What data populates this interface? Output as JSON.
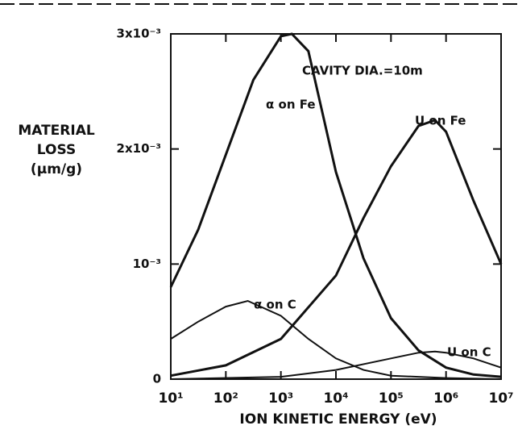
{
  "chart_data": {
    "type": "line",
    "x_label": "ION  KINETIC ENERGY (eV)",
    "y_label": [
      "MATERIAL",
      "LOSS",
      "(μm/g)"
    ],
    "annotation": "CAVITY DIA.=10m",
    "xscale": "log",
    "xlim": [
      10,
      10000000
    ],
    "xticks": [
      {
        "value": 10,
        "label": "10¹"
      },
      {
        "value": 100,
        "label": "10²"
      },
      {
        "value": 1000,
        "label": "10³"
      },
      {
        "value": 10000,
        "label": "10⁴"
      },
      {
        "value": 100000,
        "label": "10⁵"
      },
      {
        "value": 1000000,
        "label": "10⁶"
      },
      {
        "value": 10000000,
        "label": "10⁷"
      }
    ],
    "ylim": [
      0,
      0.003
    ],
    "yticks": [
      0,
      {
        "value": 0.001,
        "label": "10⁻³"
      },
      {
        "value": 0.002,
        "label": "2x10⁻³"
      },
      {
        "value": 0.003,
        "label": "3x10⁻³"
      }
    ],
    "series": [
      {
        "name": "α on Fe",
        "color": "#111111",
        "x": [
          10,
          31.6,
          100,
          316,
          1000,
          1585,
          3162,
          10000,
          31623,
          100000,
          316228,
          1000000,
          3162278,
          10000000
        ],
        "values": [
          0.0008,
          0.0013,
          0.00195,
          0.0026,
          0.00298,
          0.003,
          0.00285,
          0.0018,
          0.00105,
          0.00053,
          0.00025,
          0.0001,
          4e-05,
          2e-05
        ]
      },
      {
        "name": "U on Fe",
        "color": "#111111",
        "x": [
          10,
          100,
          1000,
          10000,
          31623,
          100000,
          316228,
          630957,
          1000000,
          3162278,
          10000000
        ],
        "values": [
          3e-05,
          0.00012,
          0.00035,
          0.0009,
          0.0014,
          0.00185,
          0.0022,
          0.00225,
          0.00215,
          0.00155,
          0.001
        ]
      },
      {
        "name": "α on C",
        "color": "#111111",
        "x": [
          10,
          31.6,
          100,
          251,
          1000,
          3162,
          10000,
          31623,
          100000,
          1000000,
          10000000
        ],
        "values": [
          0.00035,
          0.0005,
          0.00063,
          0.00068,
          0.00055,
          0.00035,
          0.00018,
          8e-05,
          3e-05,
          1e-05,
          0
        ]
      },
      {
        "name": "U on C",
        "color": "#111111",
        "x": [
          10,
          1000,
          10000,
          100000,
          316228,
          630957,
          1000000,
          3162278,
          10000000
        ],
        "values": [
          0,
          2e-05,
          8e-05,
          0.00018,
          0.00023,
          0.00024,
          0.00023,
          0.00018,
          0.0001
        ]
      }
    ]
  }
}
